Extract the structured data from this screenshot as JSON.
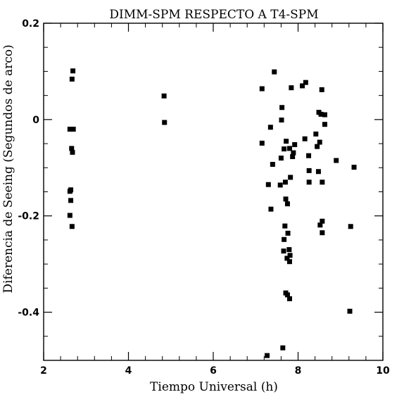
{
  "chart_data": {
    "type": "scatter",
    "title": "DIMM-SPM RESPECTO A T4-SPM",
    "xlabel": "Tiempo Universal (h)",
    "ylabel": "Diferencia de Seeing (Segundos de arco)",
    "xlim": [
      2,
      10
    ],
    "ylim": [
      -0.5,
      0.2
    ],
    "xticks": [
      2,
      4,
      6,
      8,
      10
    ],
    "xtick_labels": [
      "2",
      "4",
      "6",
      "8",
      "10"
    ],
    "yticks": [
      -0.4,
      -0.2,
      0,
      0.2
    ],
    "ytick_labels": [
      "-0.4",
      "-0.2",
      "0",
      "0.2"
    ],
    "grid": false,
    "marker": "square",
    "color": "#000000",
    "points": [
      {
        "x": 2.69,
        "y": 0.101
      },
      {
        "x": 2.67,
        "y": 0.084
      },
      {
        "x": 2.62,
        "y": -0.02
      },
      {
        "x": 2.7,
        "y": -0.02
      },
      {
        "x": 2.66,
        "y": -0.06
      },
      {
        "x": 2.68,
        "y": -0.068
      },
      {
        "x": 2.64,
        "y": -0.146
      },
      {
        "x": 2.62,
        "y": -0.149
      },
      {
        "x": 2.64,
        "y": -0.168
      },
      {
        "x": 2.62,
        "y": -0.199
      },
      {
        "x": 2.67,
        "y": -0.222
      },
      {
        "x": 4.84,
        "y": 0.049
      },
      {
        "x": 4.85,
        "y": -0.006
      },
      {
        "x": 7.15,
        "y": 0.064
      },
      {
        "x": 7.44,
        "y": 0.099
      },
      {
        "x": 7.15,
        "y": -0.049
      },
      {
        "x": 7.35,
        "y": -0.016
      },
      {
        "x": 7.3,
        "y": -0.135
      },
      {
        "x": 7.4,
        "y": -0.093
      },
      {
        "x": 7.36,
        "y": -0.186
      },
      {
        "x": 7.27,
        "y": -0.49
      },
      {
        "x": 7.62,
        "y": 0.025
      },
      {
        "x": 7.61,
        "y": -0.001
      },
      {
        "x": 7.6,
        "y": -0.08
      },
      {
        "x": 7.58,
        "y": -0.136
      },
      {
        "x": 7.67,
        "y": -0.061
      },
      {
        "x": 7.72,
        "y": -0.045
      },
      {
        "x": 7.7,
        "y": -0.13
      },
      {
        "x": 7.8,
        "y": -0.06
      },
      {
        "x": 7.82,
        "y": -0.12
      },
      {
        "x": 7.71,
        "y": -0.165
      },
      {
        "x": 7.75,
        "y": -0.175
      },
      {
        "x": 7.69,
        "y": -0.221
      },
      {
        "x": 7.76,
        "y": -0.236
      },
      {
        "x": 7.67,
        "y": -0.249
      },
      {
        "x": 7.79,
        "y": -0.27
      },
      {
        "x": 7.66,
        "y": -0.273
      },
      {
        "x": 7.81,
        "y": -0.282
      },
      {
        "x": 7.74,
        "y": -0.288
      },
      {
        "x": 7.8,
        "y": -0.295
      },
      {
        "x": 7.71,
        "y": -0.36
      },
      {
        "x": 7.75,
        "y": -0.364
      },
      {
        "x": 7.8,
        "y": -0.372
      },
      {
        "x": 7.64,
        "y": -0.474
      },
      {
        "x": 7.84,
        "y": 0.066
      },
      {
        "x": 7.87,
        "y": -0.077
      },
      {
        "x": 7.89,
        "y": -0.069
      },
      {
        "x": 7.92,
        "y": -0.052
      },
      {
        "x": 8.1,
        "y": 0.07
      },
      {
        "x": 8.18,
        "y": 0.077
      },
      {
        "x": 8.16,
        "y": -0.04
      },
      {
        "x": 8.25,
        "y": -0.075
      },
      {
        "x": 8.26,
        "y": -0.106
      },
      {
        "x": 8.26,
        "y": -0.13
      },
      {
        "x": 8.42,
        "y": -0.03
      },
      {
        "x": 8.45,
        "y": -0.056
      },
      {
        "x": 8.51,
        "y": -0.047
      },
      {
        "x": 8.48,
        "y": -0.108
      },
      {
        "x": 8.49,
        "y": 0.015
      },
      {
        "x": 8.54,
        "y": 0.011
      },
      {
        "x": 8.56,
        "y": 0.062
      },
      {
        "x": 8.63,
        "y": 0.01
      },
      {
        "x": 8.63,
        "y": -0.01
      },
      {
        "x": 8.57,
        "y": -0.13
      },
      {
        "x": 8.52,
        "y": -0.219
      },
      {
        "x": 8.57,
        "y": -0.211
      },
      {
        "x": 8.57,
        "y": -0.235
      },
      {
        "x": 8.9,
        "y": -0.085
      },
      {
        "x": 9.32,
        "y": -0.099
      },
      {
        "x": 9.24,
        "y": -0.222
      },
      {
        "x": 9.22,
        "y": -0.398
      }
    ]
  }
}
